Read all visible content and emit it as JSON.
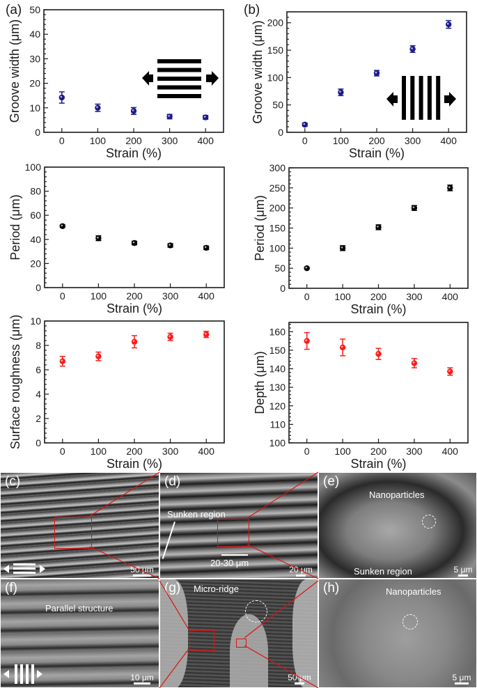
{
  "chart_data": [
    {
      "panel": "(a)",
      "type": "scatter",
      "title": "",
      "xlabel": "Strain (%)",
      "ylabel": "Groove width (μm)",
      "x": [
        0,
        100,
        200,
        300,
        400
      ],
      "xticks": [
        "0",
        "100",
        "200",
        "300",
        "400"
      ],
      "yticks": [
        "0",
        "10",
        "20",
        "30",
        "40",
        "50"
      ],
      "ylim": [
        0,
        50
      ],
      "series": [
        {
          "name": "Groove width",
          "color": "#1a1a8c",
          "values": [
            14.2,
            10.0,
            8.7,
            6.4,
            6.1
          ],
          "errors": [
            2.3,
            1.5,
            1.4,
            0.9,
            0.8
          ]
        }
      ],
      "annotation": "horizontal-stripes-with-stretch-arrows"
    },
    {
      "panel": "(b)",
      "type": "scatter",
      "xlabel": "Strain (%)",
      "ylabel": "Groove width (μm)",
      "x": [
        0,
        100,
        200,
        300,
        400
      ],
      "xticks": [
        "0",
        "100",
        "200",
        "300",
        "400"
      ],
      "yticks": [
        "0",
        "50",
        "100",
        "150",
        "200"
      ],
      "ylim": [
        0,
        220
      ],
      "series": [
        {
          "name": "Groove width",
          "color": "#1a1a8c",
          "values": [
            14,
            73,
            108,
            152,
            197
          ],
          "errors": [
            3,
            6,
            5,
            6,
            7
          ]
        }
      ],
      "annotation": "vertical-stripes-with-stretch-arrows"
    },
    {
      "panel": "(a)-period",
      "type": "scatter",
      "xlabel": "Strain (%)",
      "ylabel": "Period (μm)",
      "x": [
        0,
        100,
        200,
        300,
        400
      ],
      "xticks": [
        "0",
        "100",
        "200",
        "300",
        "400"
      ],
      "yticks": [
        "0",
        "20",
        "40",
        "60",
        "80",
        "100"
      ],
      "ylim": [
        0,
        100
      ],
      "series": [
        {
          "name": "Period",
          "color": "#000000",
          "values": [
            51,
            41,
            37,
            35,
            33
          ],
          "errors": [
            1,
            2,
            1.5,
            1.5,
            1.5
          ]
        }
      ]
    },
    {
      "panel": "(b)-period",
      "type": "scatter",
      "xlabel": "Strain (%)",
      "ylabel": "Period (μm)",
      "x": [
        0,
        100,
        200,
        300,
        400
      ],
      "xticks": [
        "0",
        "100",
        "200",
        "300",
        "400"
      ],
      "yticks": [
        "0",
        "50",
        "100",
        "150",
        "200",
        "250",
        "300"
      ],
      "ylim": [
        0,
        300
      ],
      "series": [
        {
          "name": "Period",
          "color": "#000000",
          "values": [
            50,
            100,
            152,
            200,
            250
          ],
          "errors": [
            2,
            6,
            6,
            6,
            7
          ]
        }
      ]
    },
    {
      "panel": "(a)-roughness",
      "type": "scatter",
      "xlabel": "Strain (%)",
      "ylabel": "Surface roughness (μm)",
      "x": [
        0,
        100,
        200,
        300,
        400
      ],
      "xticks": [
        "0",
        "100",
        "200",
        "300",
        "400"
      ],
      "yticks": [
        "0",
        "2",
        "4",
        "6",
        "8",
        "10"
      ],
      "ylim": [
        0,
        10
      ],
      "series": [
        {
          "name": "Surface roughness",
          "color": "#ff1a1a",
          "values": [
            6.7,
            7.1,
            8.3,
            8.7,
            8.9
          ],
          "errors": [
            0.4,
            0.35,
            0.5,
            0.3,
            0.25
          ]
        }
      ]
    },
    {
      "panel": "(b)-depth",
      "type": "scatter",
      "xlabel": "Strain (%)",
      "ylabel": "Depth (μm)",
      "x": [
        0,
        100,
        200,
        300,
        400
      ],
      "xticks": [
        "0",
        "100",
        "200",
        "300",
        "400"
      ],
      "yticks": [
        "100",
        "110",
        "120",
        "130",
        "140",
        "150",
        "160"
      ],
      "ylim": [
        100,
        165
      ],
      "series": [
        {
          "name": "Depth",
          "color": "#ff1a1a",
          "values": [
            155,
            151.5,
            148,
            143,
            138.5
          ],
          "errors": [
            4.5,
            4.5,
            3,
            2.5,
            2
          ]
        }
      ]
    }
  ],
  "charts": [
    {
      "label": "(a)",
      "ylabel": "Groove width (μm)",
      "xlabel": "Strain (%)"
    },
    {
      "label": "(b)",
      "ylabel": "Groove width (μm)",
      "xlabel": "Strain (%)"
    },
    {
      "label": "",
      "ylabel": "Period (μm)",
      "xlabel": "Strain (%)"
    },
    {
      "label": "",
      "ylabel": "Period (μm)",
      "xlabel": "Strain (%)"
    },
    {
      "label": "",
      "ylabel": "Surface roughness (μm)",
      "xlabel": "Strain (%)"
    },
    {
      "label": "",
      "ylabel": "Depth (μm)",
      "xlabel": "Strain (%)"
    }
  ],
  "sem_panels": [
    {
      "label": "(c)",
      "scalebar": "50 μm",
      "notes": []
    },
    {
      "label": "(d)",
      "scalebar": "20 μm",
      "notes": [
        "Sunken region",
        "20-30 μm"
      ]
    },
    {
      "label": "(e)",
      "scalebar": "5 μm",
      "notes": [
        "Nanoparticles",
        "Sunken region"
      ]
    },
    {
      "label": "(f)",
      "scalebar": "10 μm",
      "notes": [
        "Parallel structure"
      ]
    },
    {
      "label": "(g)",
      "scalebar": "50 μm",
      "notes": [
        "Micro-ridge"
      ]
    },
    {
      "label": "(h)",
      "scalebar": "5 μm",
      "notes": [
        "Nanoparticles"
      ]
    }
  ]
}
